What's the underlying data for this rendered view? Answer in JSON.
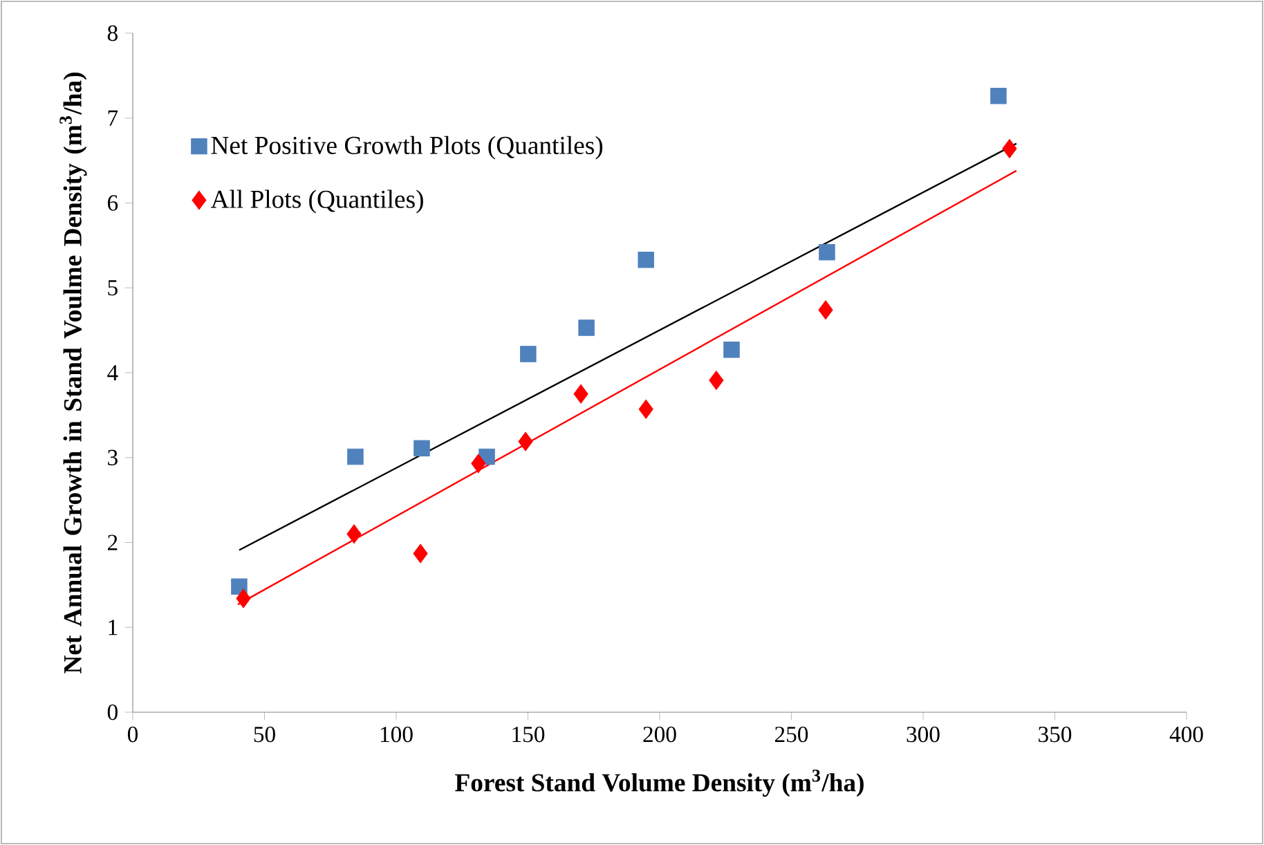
{
  "chart_data": {
    "type": "scatter",
    "xlabel": "Forest Stand Volume Density (m$^{3}$/ha)",
    "ylabel": "Net Annual Growth in Stand Voulme Density (m$^{3}$/ha)",
    "xlim": [
      0,
      400
    ],
    "ylim": [
      0,
      8
    ],
    "xticks": [
      0,
      50,
      100,
      150,
      200,
      250,
      300,
      350,
      400
    ],
    "yticks": [
      0,
      1,
      2,
      3,
      4,
      5,
      6,
      7,
      8
    ],
    "legend": "top left",
    "series": [
      {
        "name": "Net Positive Growth Plots (Quantiles)",
        "marker": "square",
        "color": "#4f81bd",
        "x": [
          40.4,
          84.5,
          109.7,
          134.4,
          150.1,
          172.2,
          194.8,
          227.3,
          263.5,
          328.6
        ],
        "values": [
          1.48,
          3.01,
          3.11,
          3.01,
          4.22,
          4.53,
          5.33,
          4.27,
          5.42,
          7.26
        ]
      },
      {
        "name": "All Plots (Quantiles)",
        "marker": "diamond",
        "color": "#ff0000",
        "x": [
          42,
          84,
          109.2,
          131.2,
          149.1,
          170.1,
          194.8,
          221.5,
          263,
          332.8
        ],
        "values": [
          1.34,
          2.1,
          1.87,
          2.93,
          3.19,
          3.75,
          3.57,
          3.91,
          4.74,
          6.64
        ]
      },
      {
        "type": "line",
        "marker": "none",
        "color": "#000000",
        "x": [
          40.4,
          335.4
        ],
        "values": [
          1.91,
          6.7
        ]
      },
      {
        "type": "line",
        "marker": "none",
        "color": "#ff0000",
        "x": [
          39.9,
          335.4
        ],
        "values": [
          1.27,
          6.38
        ]
      }
    ]
  }
}
